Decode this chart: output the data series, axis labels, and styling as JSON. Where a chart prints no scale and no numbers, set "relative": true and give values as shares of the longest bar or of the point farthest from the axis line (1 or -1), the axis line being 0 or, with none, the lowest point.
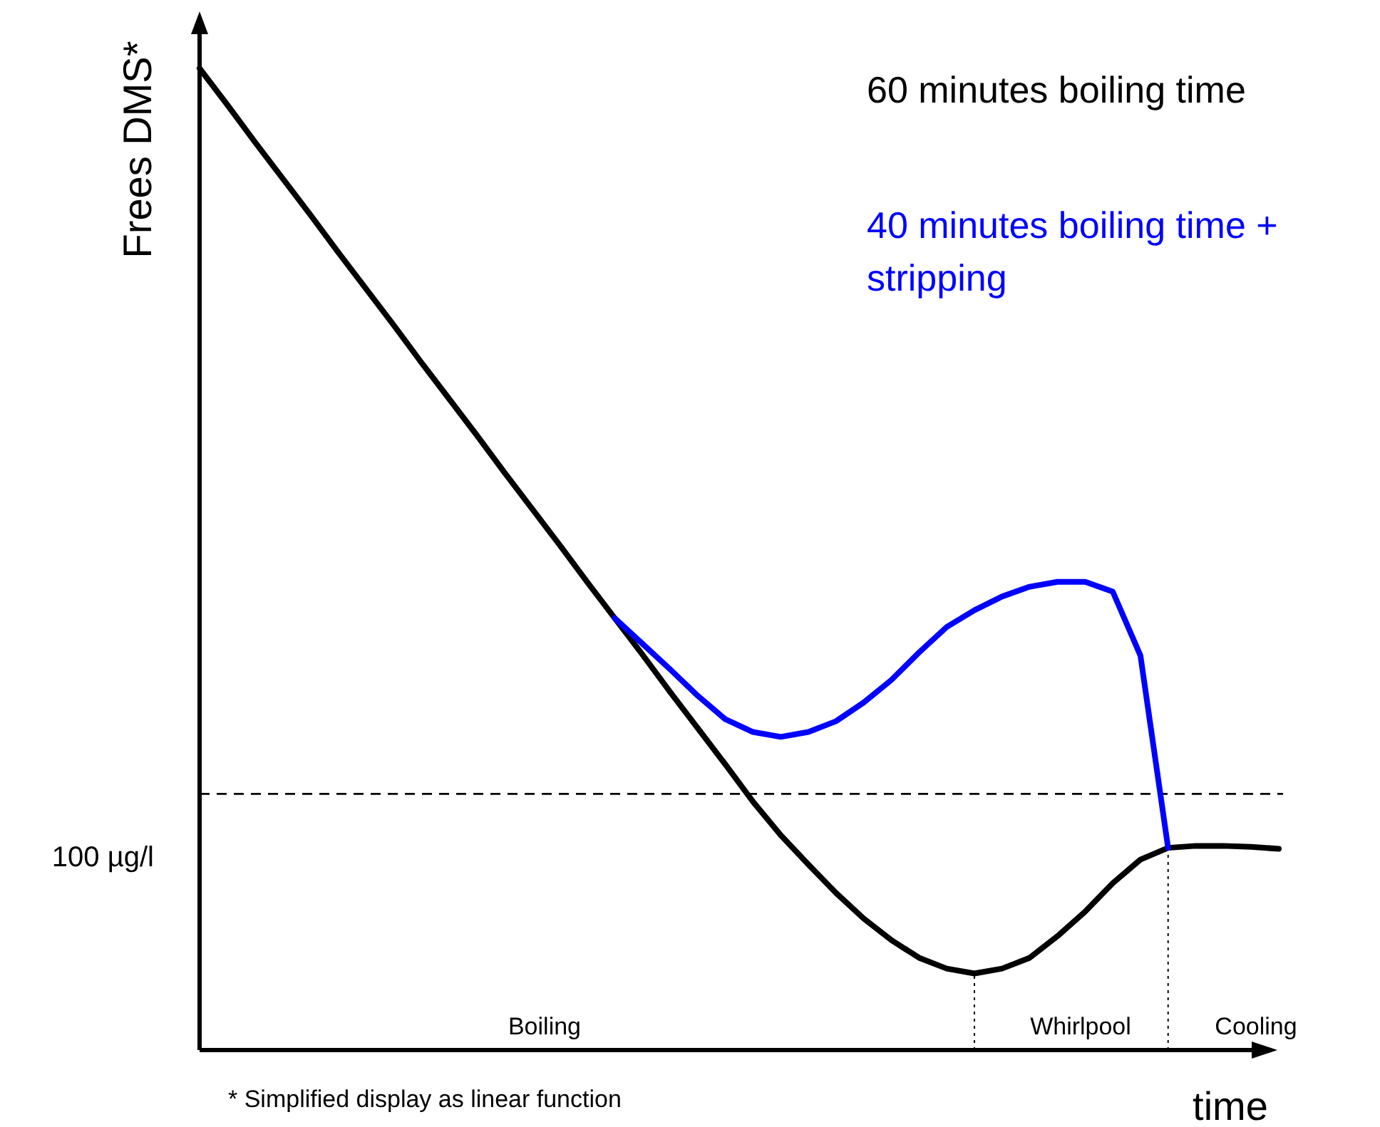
{
  "chart_data": {
    "type": "line",
    "relative": true,
    "ylabel": "Frees DMS*",
    "xlabel": "time",
    "categories": [
      null,
      null,
      null,
      null,
      null,
      null,
      null,
      null,
      null,
      null,
      null,
      null,
      null,
      null,
      null,
      null,
      null,
      null,
      null,
      null,
      null,
      null,
      null,
      null,
      null,
      null,
      null,
      null,
      null,
      null,
      null,
      null,
      null,
      null,
      null,
      null,
      null,
      null,
      null,
      null
    ],
    "series": [
      {
        "name": "60 minutes boiling time",
        "color": "#000000",
        "values": [
          1.0,
          0.963,
          0.925,
          0.888,
          0.851,
          0.813,
          0.776,
          0.739,
          0.701,
          0.664,
          0.627,
          0.589,
          0.552,
          0.515,
          0.477,
          0.44,
          0.403,
          0.365,
          0.328,
          0.291,
          0.253,
          0.219,
          0.189,
          0.16,
          0.134,
          0.112,
          0.094,
          0.083,
          0.078,
          0.083,
          0.094,
          0.116,
          0.141,
          0.17,
          0.194,
          0.206,
          0.208,
          0.208,
          0.207,
          0.205
        ]
      },
      {
        "name": "40 minutes boiling time + stripping",
        "color": "#0000ff",
        "values": [
          null,
          null,
          null,
          null,
          null,
          null,
          null,
          null,
          null,
          null,
          null,
          null,
          null,
          null,
          null,
          0.44,
          0.414,
          0.388,
          0.361,
          0.337,
          0.324,
          0.319,
          0.324,
          0.335,
          0.354,
          0.377,
          0.405,
          0.431,
          0.448,
          0.462,
          0.472,
          0.477,
          0.477,
          0.467,
          0.402,
          0.206,
          null,
          null,
          null,
          null
        ]
      }
    ],
    "ref_lines": [
      {
        "axis": "y",
        "value": 0.261,
        "line_style": "dashed",
        "color": "#000000"
      }
    ],
    "annotations": [
      "100 µg/l",
      "Boiling",
      "Whirlpool",
      "Cooling",
      "* Simplified display as linear function"
    ]
  }
}
